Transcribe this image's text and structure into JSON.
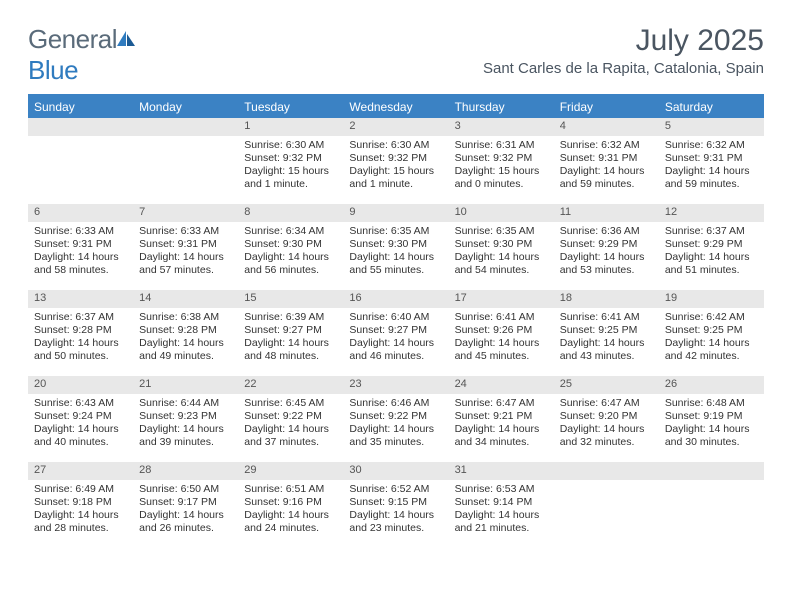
{
  "logo": {
    "text_gray": "General",
    "text_blue": "Blue"
  },
  "title": "July 2025",
  "location": "Sant Carles de la Rapita, Catalonia, Spain",
  "colors": {
    "header_blue": "#3b82c4",
    "daynum_bg": "#e8e8e8",
    "text_dark": "#4a5561",
    "logo_gray": "#5a6b7a",
    "logo_blue": "#2f7bbf"
  },
  "weekdays": [
    "Sunday",
    "Monday",
    "Tuesday",
    "Wednesday",
    "Thursday",
    "Friday",
    "Saturday"
  ],
  "weeks": [
    [
      null,
      null,
      {
        "n": "1",
        "sr": "6:30 AM",
        "ss": "9:32 PM",
        "dl": "15 hours and 1 minute."
      },
      {
        "n": "2",
        "sr": "6:30 AM",
        "ss": "9:32 PM",
        "dl": "15 hours and 1 minute."
      },
      {
        "n": "3",
        "sr": "6:31 AM",
        "ss": "9:32 PM",
        "dl": "15 hours and 0 minutes."
      },
      {
        "n": "4",
        "sr": "6:32 AM",
        "ss": "9:31 PM",
        "dl": "14 hours and 59 minutes."
      },
      {
        "n": "5",
        "sr": "6:32 AM",
        "ss": "9:31 PM",
        "dl": "14 hours and 59 minutes."
      }
    ],
    [
      {
        "n": "6",
        "sr": "6:33 AM",
        "ss": "9:31 PM",
        "dl": "14 hours and 58 minutes."
      },
      {
        "n": "7",
        "sr": "6:33 AM",
        "ss": "9:31 PM",
        "dl": "14 hours and 57 minutes."
      },
      {
        "n": "8",
        "sr": "6:34 AM",
        "ss": "9:30 PM",
        "dl": "14 hours and 56 minutes."
      },
      {
        "n": "9",
        "sr": "6:35 AM",
        "ss": "9:30 PM",
        "dl": "14 hours and 55 minutes."
      },
      {
        "n": "10",
        "sr": "6:35 AM",
        "ss": "9:30 PM",
        "dl": "14 hours and 54 minutes."
      },
      {
        "n": "11",
        "sr": "6:36 AM",
        "ss": "9:29 PM",
        "dl": "14 hours and 53 minutes."
      },
      {
        "n": "12",
        "sr": "6:37 AM",
        "ss": "9:29 PM",
        "dl": "14 hours and 51 minutes."
      }
    ],
    [
      {
        "n": "13",
        "sr": "6:37 AM",
        "ss": "9:28 PM",
        "dl": "14 hours and 50 minutes."
      },
      {
        "n": "14",
        "sr": "6:38 AM",
        "ss": "9:28 PM",
        "dl": "14 hours and 49 minutes."
      },
      {
        "n": "15",
        "sr": "6:39 AM",
        "ss": "9:27 PM",
        "dl": "14 hours and 48 minutes."
      },
      {
        "n": "16",
        "sr": "6:40 AM",
        "ss": "9:27 PM",
        "dl": "14 hours and 46 minutes."
      },
      {
        "n": "17",
        "sr": "6:41 AM",
        "ss": "9:26 PM",
        "dl": "14 hours and 45 minutes."
      },
      {
        "n": "18",
        "sr": "6:41 AM",
        "ss": "9:25 PM",
        "dl": "14 hours and 43 minutes."
      },
      {
        "n": "19",
        "sr": "6:42 AM",
        "ss": "9:25 PM",
        "dl": "14 hours and 42 minutes."
      }
    ],
    [
      {
        "n": "20",
        "sr": "6:43 AM",
        "ss": "9:24 PM",
        "dl": "14 hours and 40 minutes."
      },
      {
        "n": "21",
        "sr": "6:44 AM",
        "ss": "9:23 PM",
        "dl": "14 hours and 39 minutes."
      },
      {
        "n": "22",
        "sr": "6:45 AM",
        "ss": "9:22 PM",
        "dl": "14 hours and 37 minutes."
      },
      {
        "n": "23",
        "sr": "6:46 AM",
        "ss": "9:22 PM",
        "dl": "14 hours and 35 minutes."
      },
      {
        "n": "24",
        "sr": "6:47 AM",
        "ss": "9:21 PM",
        "dl": "14 hours and 34 minutes."
      },
      {
        "n": "25",
        "sr": "6:47 AM",
        "ss": "9:20 PM",
        "dl": "14 hours and 32 minutes."
      },
      {
        "n": "26",
        "sr": "6:48 AM",
        "ss": "9:19 PM",
        "dl": "14 hours and 30 minutes."
      }
    ],
    [
      {
        "n": "27",
        "sr": "6:49 AM",
        "ss": "9:18 PM",
        "dl": "14 hours and 28 minutes."
      },
      {
        "n": "28",
        "sr": "6:50 AM",
        "ss": "9:17 PM",
        "dl": "14 hours and 26 minutes."
      },
      {
        "n": "29",
        "sr": "6:51 AM",
        "ss": "9:16 PM",
        "dl": "14 hours and 24 minutes."
      },
      {
        "n": "30",
        "sr": "6:52 AM",
        "ss": "9:15 PM",
        "dl": "14 hours and 23 minutes."
      },
      {
        "n": "31",
        "sr": "6:53 AM",
        "ss": "9:14 PM",
        "dl": "14 hours and 21 minutes."
      },
      null,
      null
    ]
  ],
  "labels": {
    "sunrise": "Sunrise:",
    "sunset": "Sunset:",
    "daylight": "Daylight:"
  }
}
